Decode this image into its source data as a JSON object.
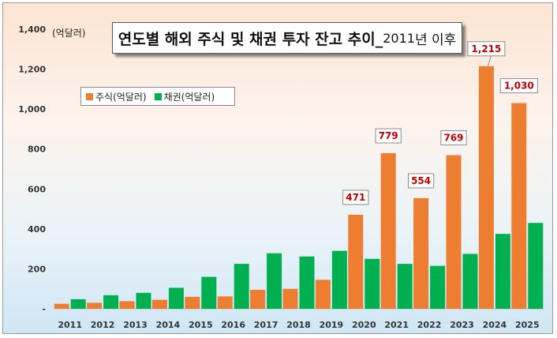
{
  "title": {
    "main": "연도별 해외 주식 및 채권 투자 잔고 추이_",
    "year": "2011",
    "tail": "년 이후"
  },
  "unit_label": "(억달러)",
  "colors": {
    "stocks": "#ed7d31",
    "bonds": "#00b050",
    "label_text": "#c00000"
  },
  "chart_data": {
    "type": "bar",
    "categories": [
      "2011",
      "2012",
      "2013",
      "2014",
      "2015",
      "2016",
      "2017",
      "2018",
      "2019",
      "2020",
      "2021",
      "2022",
      "2023",
      "2024",
      "2025"
    ],
    "series": [
      {
        "name": "주식(억달러)",
        "values": [
          25,
          30,
          38,
          45,
          60,
          62,
          95,
          100,
          145,
          471,
          779,
          554,
          769,
          1215,
          1030
        ]
      },
      {
        "name": "채권(억달러)",
        "values": [
          48,
          68,
          80,
          105,
          160,
          225,
          278,
          262,
          290,
          250,
          225,
          215,
          275,
          375,
          430
        ]
      }
    ],
    "data_labels": {
      "2020": "471",
      "2021": "779",
      "2022": "554",
      "2023": "769",
      "2024": "1,215",
      "2025": "1,030"
    },
    "ylim": [
      0,
      1400
    ],
    "yticks": [
      {
        "value": 0,
        "label": "-"
      },
      {
        "value": 200,
        "label": "200"
      },
      {
        "value": 400,
        "label": "400"
      },
      {
        "value": 600,
        "label": "600"
      },
      {
        "value": 800,
        "label": "800"
      },
      {
        "value": 1000,
        "label": "1,000"
      },
      {
        "value": 1200,
        "label": "1,200"
      },
      {
        "value": 1400,
        "label": "1,400"
      }
    ],
    "grid": false,
    "legend": "top-left"
  }
}
